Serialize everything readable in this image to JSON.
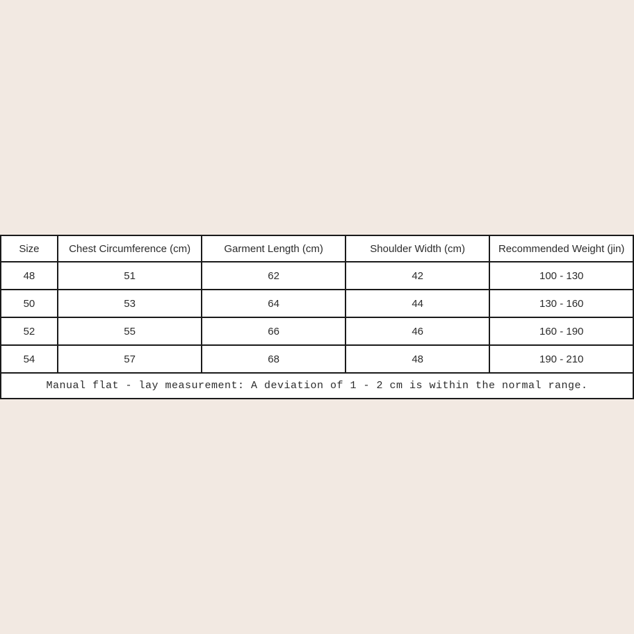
{
  "page": {
    "background_color": "#f2e9e2",
    "table_border_color": "#1a1a1a",
    "table_background_color": "#ffffff"
  },
  "size_chart": {
    "headers": [
      "Size",
      "Chest Circumference (cm)",
      "Garment Length (cm)",
      "Shoulder Width (cm)",
      "Recommended Weight (jin)"
    ],
    "rows": [
      [
        "48",
        "51",
        "62",
        "42",
        "100 - 130"
      ],
      [
        "50",
        "53",
        "64",
        "44",
        "130 - 160"
      ],
      [
        "52",
        "55",
        "66",
        "46",
        "160 - 190"
      ],
      [
        "54",
        "57",
        "68",
        "48",
        "190 - 210"
      ]
    ],
    "footnote": "Manual flat - lay measurement: A deviation of 1 - 2 cm is within the normal range."
  }
}
